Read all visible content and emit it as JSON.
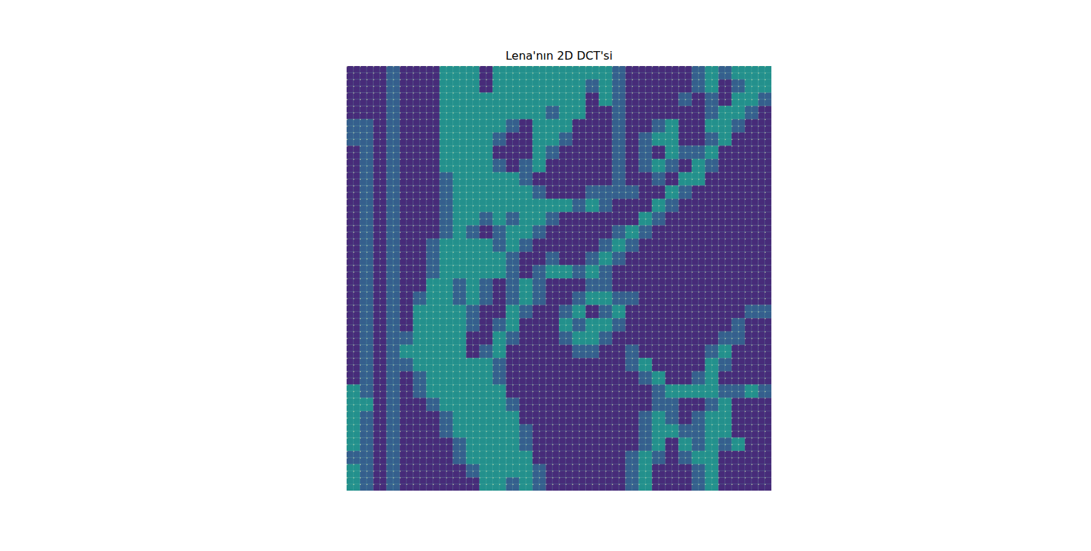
{
  "chart_data": {
    "type": "heatmap",
    "title": "Lena'nın 2D DCT'si",
    "zlim": [
      0,
      1
    ],
    "tick_labels": false,
    "cells": [
      [
        0.12,
        0.12,
        0.12,
        0.3,
        0.12,
        0.12,
        0.12,
        0.5,
        0.5,
        0.5,
        0.12,
        0.5,
        0.5,
        0.5,
        0.5,
        0.5,
        0.5,
        0.5,
        0.5,
        0.5,
        0.3,
        0.12,
        0.12,
        0.12,
        0.12,
        0.12,
        0.3,
        0.5,
        0.3,
        0.5,
        0.5,
        0.5
      ],
      [
        0.12,
        0.12,
        0.12,
        0.3,
        0.12,
        0.12,
        0.12,
        0.5,
        0.5,
        0.5,
        0.12,
        0.5,
        0.5,
        0.5,
        0.5,
        0.5,
        0.5,
        0.5,
        0.3,
        0.5,
        0.3,
        0.12,
        0.12,
        0.12,
        0.12,
        0.12,
        0.3,
        0.5,
        0.12,
        0.3,
        0.5,
        0.5
      ],
      [
        0.12,
        0.12,
        0.12,
        0.3,
        0.12,
        0.12,
        0.12,
        0.5,
        0.5,
        0.5,
        0.5,
        0.5,
        0.5,
        0.5,
        0.5,
        0.5,
        0.5,
        0.5,
        0.12,
        0.5,
        0.3,
        0.12,
        0.12,
        0.12,
        0.12,
        0.3,
        0.12,
        0.3,
        0.12,
        0.5,
        0.5,
        0.3
      ],
      [
        0.12,
        0.12,
        0.12,
        0.3,
        0.12,
        0.12,
        0.12,
        0.5,
        0.5,
        0.5,
        0.5,
        0.5,
        0.5,
        0.5,
        0.5,
        0.3,
        0.5,
        0.5,
        0.12,
        0.12,
        0.3,
        0.12,
        0.12,
        0.12,
        0.12,
        0.12,
        0.12,
        0.3,
        0.5,
        0.5,
        0.3,
        0.12
      ],
      [
        0.3,
        0.3,
        0.12,
        0.3,
        0.12,
        0.12,
        0.12,
        0.5,
        0.5,
        0.5,
        0.5,
        0.5,
        0.3,
        0.12,
        0.5,
        0.5,
        0.5,
        0.12,
        0.12,
        0.12,
        0.3,
        0.12,
        0.12,
        0.3,
        0.5,
        0.12,
        0.12,
        0.5,
        0.5,
        0.3,
        0.12,
        0.12
      ],
      [
        0.3,
        0.3,
        0.12,
        0.3,
        0.12,
        0.12,
        0.12,
        0.5,
        0.5,
        0.5,
        0.5,
        0.3,
        0.12,
        0.12,
        0.5,
        0.5,
        0.3,
        0.12,
        0.12,
        0.12,
        0.3,
        0.12,
        0.3,
        0.5,
        0.5,
        0.12,
        0.12,
        0.3,
        0.5,
        0.12,
        0.12,
        0.12
      ],
      [
        0.12,
        0.3,
        0.12,
        0.3,
        0.12,
        0.12,
        0.12,
        0.5,
        0.5,
        0.5,
        0.5,
        0.12,
        0.12,
        0.12,
        0.5,
        0.3,
        0.12,
        0.12,
        0.12,
        0.12,
        0.3,
        0.12,
        0.3,
        0.12,
        0.5,
        0.3,
        0.3,
        0.5,
        0.12,
        0.12,
        0.12,
        0.12
      ],
      [
        0.12,
        0.3,
        0.12,
        0.3,
        0.12,
        0.12,
        0.12,
        0.5,
        0.5,
        0.5,
        0.5,
        0.3,
        0.12,
        0.3,
        0.5,
        0.12,
        0.12,
        0.12,
        0.12,
        0.12,
        0.3,
        0.12,
        0.3,
        0.5,
        0.3,
        0.12,
        0.5,
        0.3,
        0.12,
        0.12,
        0.12,
        0.12
      ],
      [
        0.12,
        0.3,
        0.12,
        0.3,
        0.12,
        0.12,
        0.12,
        0.3,
        0.5,
        0.5,
        0.5,
        0.5,
        0.5,
        0.3,
        0.12,
        0.12,
        0.12,
        0.12,
        0.12,
        0.12,
        0.3,
        0.12,
        0.12,
        0.3,
        0.12,
        0.5,
        0.5,
        0.12,
        0.12,
        0.12,
        0.12,
        0.12
      ],
      [
        0.12,
        0.3,
        0.12,
        0.3,
        0.12,
        0.12,
        0.12,
        0.3,
        0.5,
        0.5,
        0.5,
        0.5,
        0.5,
        0.5,
        0.3,
        0.12,
        0.12,
        0.12,
        0.3,
        0.3,
        0.3,
        0.3,
        0.12,
        0.12,
        0.5,
        0.3,
        0.12,
        0.12,
        0.12,
        0.12,
        0.12,
        0.12
      ],
      [
        0.12,
        0.3,
        0.12,
        0.3,
        0.12,
        0.12,
        0.12,
        0.3,
        0.5,
        0.5,
        0.5,
        0.5,
        0.5,
        0.5,
        0.5,
        0.5,
        0.5,
        0.3,
        0.5,
        0.3,
        0.12,
        0.12,
        0.12,
        0.5,
        0.3,
        0.12,
        0.12,
        0.12,
        0.12,
        0.12,
        0.12,
        0.12
      ],
      [
        0.12,
        0.3,
        0.12,
        0.3,
        0.12,
        0.12,
        0.12,
        0.3,
        0.5,
        0.5,
        0.3,
        0.5,
        0.3,
        0.5,
        0.5,
        0.3,
        0.12,
        0.12,
        0.12,
        0.12,
        0.12,
        0.12,
        0.5,
        0.3,
        0.12,
        0.12,
        0.12,
        0.12,
        0.12,
        0.12,
        0.12,
        0.12
      ],
      [
        0.12,
        0.3,
        0.12,
        0.3,
        0.12,
        0.12,
        0.12,
        0.3,
        0.5,
        0.3,
        0.12,
        0.3,
        0.5,
        0.5,
        0.3,
        0.12,
        0.12,
        0.12,
        0.12,
        0.12,
        0.3,
        0.5,
        0.3,
        0.12,
        0.12,
        0.12,
        0.12,
        0.12,
        0.12,
        0.12,
        0.12,
        0.12
      ],
      [
        0.12,
        0.3,
        0.12,
        0.3,
        0.12,
        0.12,
        0.3,
        0.5,
        0.5,
        0.5,
        0.5,
        0.3,
        0.5,
        0.3,
        0.12,
        0.12,
        0.12,
        0.12,
        0.12,
        0.3,
        0.5,
        0.3,
        0.12,
        0.12,
        0.12,
        0.12,
        0.12,
        0.12,
        0.12,
        0.12,
        0.12,
        0.12
      ],
      [
        0.12,
        0.3,
        0.12,
        0.3,
        0.12,
        0.12,
        0.3,
        0.5,
        0.5,
        0.5,
        0.5,
        0.5,
        0.3,
        0.12,
        0.12,
        0.3,
        0.12,
        0.12,
        0.3,
        0.5,
        0.3,
        0.12,
        0.12,
        0.12,
        0.12,
        0.12,
        0.12,
        0.12,
        0.12,
        0.12,
        0.12,
        0.12
      ],
      [
        0.12,
        0.3,
        0.12,
        0.3,
        0.12,
        0.12,
        0.3,
        0.5,
        0.5,
        0.5,
        0.5,
        0.5,
        0.3,
        0.12,
        0.3,
        0.5,
        0.5,
        0.3,
        0.5,
        0.3,
        0.12,
        0.12,
        0.12,
        0.12,
        0.12,
        0.12,
        0.12,
        0.12,
        0.12,
        0.12,
        0.12,
        0.12
      ],
      [
        0.12,
        0.3,
        0.12,
        0.3,
        0.12,
        0.12,
        0.5,
        0.5,
        0.3,
        0.5,
        0.3,
        0.12,
        0.3,
        0.5,
        0.3,
        0.12,
        0.12,
        0.12,
        0.3,
        0.3,
        0.12,
        0.12,
        0.12,
        0.12,
        0.12,
        0.12,
        0.12,
        0.12,
        0.12,
        0.12,
        0.12,
        0.12
      ],
      [
        0.12,
        0.3,
        0.12,
        0.3,
        0.12,
        0.3,
        0.5,
        0.5,
        0.3,
        0.5,
        0.3,
        0.12,
        0.3,
        0.5,
        0.3,
        0.12,
        0.12,
        0.3,
        0.5,
        0.5,
        0.3,
        0.3,
        0.12,
        0.12,
        0.12,
        0.12,
        0.12,
        0.12,
        0.12,
        0.12,
        0.12,
        0.12
      ],
      [
        0.12,
        0.3,
        0.12,
        0.3,
        0.12,
        0.5,
        0.5,
        0.5,
        0.5,
        0.3,
        0.12,
        0.12,
        0.5,
        0.3,
        0.12,
        0.12,
        0.3,
        0.5,
        0.12,
        0.3,
        0.5,
        0.12,
        0.12,
        0.12,
        0.12,
        0.12,
        0.12,
        0.12,
        0.12,
        0.12,
        0.3,
        0.3
      ],
      [
        0.12,
        0.3,
        0.12,
        0.3,
        0.12,
        0.5,
        0.5,
        0.5,
        0.5,
        0.3,
        0.12,
        0.3,
        0.5,
        0.12,
        0.12,
        0.12,
        0.5,
        0.3,
        0.5,
        0.5,
        0.3,
        0.12,
        0.12,
        0.12,
        0.12,
        0.12,
        0.12,
        0.12,
        0.12,
        0.3,
        0.12,
        0.12
      ],
      [
        0.12,
        0.3,
        0.12,
        0.3,
        0.3,
        0.5,
        0.5,
        0.5,
        0.5,
        0.12,
        0.12,
        0.5,
        0.3,
        0.12,
        0.12,
        0.12,
        0.3,
        0.5,
        0.5,
        0.3,
        0.12,
        0.12,
        0.12,
        0.12,
        0.12,
        0.12,
        0.12,
        0.12,
        0.3,
        0.3,
        0.12,
        0.12
      ],
      [
        0.12,
        0.3,
        0.12,
        0.3,
        0.5,
        0.5,
        0.5,
        0.5,
        0.5,
        0.12,
        0.3,
        0.5,
        0.12,
        0.12,
        0.12,
        0.12,
        0.12,
        0.3,
        0.3,
        0.12,
        0.12,
        0.3,
        0.12,
        0.12,
        0.12,
        0.12,
        0.12,
        0.3,
        0.5,
        0.12,
        0.12,
        0.12
      ],
      [
        0.12,
        0.3,
        0.12,
        0.3,
        0.3,
        0.5,
        0.5,
        0.5,
        0.5,
        0.5,
        0.5,
        0.3,
        0.12,
        0.12,
        0.12,
        0.12,
        0.12,
        0.12,
        0.12,
        0.12,
        0.12,
        0.3,
        0.5,
        0.12,
        0.12,
        0.12,
        0.12,
        0.5,
        0.3,
        0.12,
        0.12,
        0.12
      ],
      [
        0.12,
        0.3,
        0.12,
        0.3,
        0.12,
        0.3,
        0.5,
        0.5,
        0.5,
        0.5,
        0.5,
        0.3,
        0.12,
        0.12,
        0.12,
        0.12,
        0.12,
        0.12,
        0.12,
        0.12,
        0.12,
        0.12,
        0.3,
        0.5,
        0.12,
        0.12,
        0.3,
        0.5,
        0.12,
        0.12,
        0.12,
        0.12
      ],
      [
        0.5,
        0.3,
        0.12,
        0.3,
        0.12,
        0.3,
        0.5,
        0.5,
        0.5,
        0.5,
        0.5,
        0.5,
        0.12,
        0.12,
        0.12,
        0.12,
        0.12,
        0.12,
        0.12,
        0.12,
        0.12,
        0.12,
        0.12,
        0.3,
        0.5,
        0.5,
        0.5,
        0.5,
        0.3,
        0.3,
        0.5,
        0.3
      ],
      [
        0.5,
        0.5,
        0.12,
        0.3,
        0.12,
        0.12,
        0.3,
        0.5,
        0.5,
        0.5,
        0.5,
        0.5,
        0.3,
        0.12,
        0.12,
        0.12,
        0.12,
        0.12,
        0.12,
        0.12,
        0.12,
        0.12,
        0.12,
        0.3,
        0.3,
        0.12,
        0.12,
        0.3,
        0.5,
        0.12,
        0.12,
        0.12
      ],
      [
        0.5,
        0.3,
        0.12,
        0.3,
        0.12,
        0.12,
        0.12,
        0.3,
        0.5,
        0.5,
        0.5,
        0.5,
        0.5,
        0.12,
        0.12,
        0.12,
        0.12,
        0.12,
        0.12,
        0.12,
        0.12,
        0.12,
        0.3,
        0.5,
        0.3,
        0.12,
        0.3,
        0.5,
        0.5,
        0.12,
        0.12,
        0.12
      ],
      [
        0.5,
        0.3,
        0.12,
        0.3,
        0.12,
        0.12,
        0.12,
        0.3,
        0.5,
        0.5,
        0.5,
        0.5,
        0.5,
        0.3,
        0.12,
        0.12,
        0.12,
        0.12,
        0.12,
        0.12,
        0.12,
        0.12,
        0.3,
        0.5,
        0.5,
        0.3,
        0.3,
        0.5,
        0.5,
        0.12,
        0.12,
        0.12
      ],
      [
        0.5,
        0.3,
        0.12,
        0.3,
        0.12,
        0.12,
        0.12,
        0.12,
        0.3,
        0.5,
        0.5,
        0.5,
        0.5,
        0.3,
        0.12,
        0.12,
        0.12,
        0.12,
        0.12,
        0.12,
        0.12,
        0.12,
        0.3,
        0.5,
        0.12,
        0.5,
        0.3,
        0.5,
        0.3,
        0.5,
        0.12,
        0.12
      ],
      [
        0.3,
        0.3,
        0.12,
        0.3,
        0.12,
        0.12,
        0.12,
        0.12,
        0.3,
        0.5,
        0.5,
        0.5,
        0.5,
        0.5,
        0.12,
        0.12,
        0.12,
        0.12,
        0.12,
        0.12,
        0.12,
        0.3,
        0.5,
        0.3,
        0.12,
        0.3,
        0.5,
        0.5,
        0.12,
        0.12,
        0.12,
        0.12
      ],
      [
        0.5,
        0.3,
        0.12,
        0.3,
        0.12,
        0.12,
        0.12,
        0.12,
        0.12,
        0.3,
        0.5,
        0.5,
        0.5,
        0.5,
        0.3,
        0.12,
        0.12,
        0.12,
        0.12,
        0.12,
        0.12,
        0.3,
        0.5,
        0.12,
        0.12,
        0.12,
        0.3,
        0.5,
        0.12,
        0.12,
        0.12,
        0.12
      ],
      [
        0.5,
        0.3,
        0.12,
        0.3,
        0.12,
        0.12,
        0.12,
        0.12,
        0.12,
        0.12,
        0.5,
        0.5,
        0.3,
        0.5,
        0.3,
        0.12,
        0.12,
        0.12,
        0.12,
        0.12,
        0.12,
        0.3,
        0.5,
        0.12,
        0.12,
        0.12,
        0.3,
        0.5,
        0.12,
        0.12,
        0.12,
        0.12
      ]
    ]
  }
}
